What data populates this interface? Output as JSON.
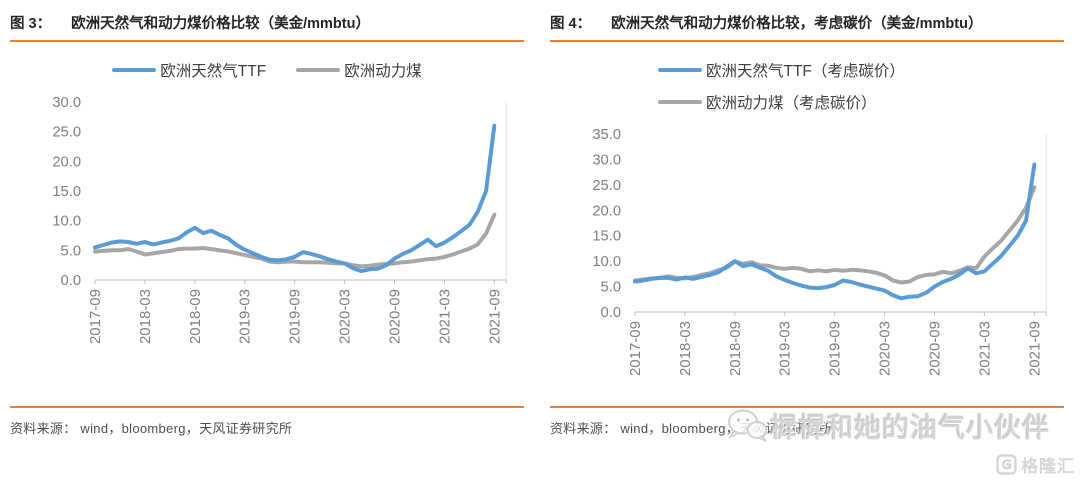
{
  "panels": [
    {
      "figure_label": "图 3：",
      "title": "欧洲天然气和动力煤价格比较（美金/mmbtu）",
      "source": "资料来源： wind，bloomberg，天风证券研究所"
    },
    {
      "figure_label": "图 4：",
      "title": "欧洲天然气和动力煤价格比较，考虑碳价（美金/mmbtu）",
      "source": "资料来源： wind，bloomberg，天风证券研究所"
    }
  ],
  "watermark": {
    "wechat_account": "樨樨和她的油气小伙伴",
    "brand": "格隆汇"
  },
  "colors": {
    "accent_orange": "#ED7D31",
    "gas_blue": "#5B9BD5",
    "coal_gray": "#A6A6A6",
    "axis_gray": "#7f7f7f"
  },
  "chart_data": [
    {
      "type": "line",
      "title": "欧洲天然气和动力煤价格比较（美金/mmbtu）",
      "x_tick_labels": [
        "2017-09",
        "2018-03",
        "2018-09",
        "2019-03",
        "2019-09",
        "2020-03",
        "2020-09",
        "2021-03",
        "2021-09"
      ],
      "points_per_tick": 6,
      "x_interval": "monthly",
      "ylim": [
        0,
        30
      ],
      "ytick_step": 5,
      "grid": false,
      "legend_position": "top",
      "series": [
        {
          "name": "欧洲天然气TTF",
          "color": "#5B9BD5",
          "values": [
            5.5,
            5.9,
            6.3,
            6.5,
            6.4,
            6.1,
            6.4,
            6.0,
            6.3,
            6.6,
            7.0,
            8.0,
            8.8,
            7.9,
            8.3,
            7.6,
            7.0,
            5.9,
            5.1,
            4.5,
            3.9,
            3.4,
            3.3,
            3.5,
            3.9,
            4.7,
            4.4,
            4.0,
            3.5,
            3.1,
            2.8,
            2.0,
            1.5,
            1.8,
            1.9,
            2.5,
            3.6,
            4.4,
            5.0,
            5.9,
            6.8,
            5.7,
            6.3,
            7.2,
            8.2,
            9.3,
            11.5,
            15.0,
            26.0
          ]
        },
        {
          "name": "欧洲动力煤",
          "color": "#A6A6A6",
          "values": [
            4.8,
            4.9,
            5.0,
            5.0,
            5.2,
            4.8,
            4.3,
            4.5,
            4.7,
            4.9,
            5.2,
            5.3,
            5.3,
            5.4,
            5.2,
            5.0,
            4.8,
            4.5,
            4.2,
            3.9,
            3.6,
            3.1,
            3.0,
            3.1,
            3.1,
            3.0,
            3.0,
            3.0,
            2.9,
            2.8,
            2.8,
            2.5,
            2.3,
            2.4,
            2.6,
            2.7,
            2.8,
            3.0,
            3.1,
            3.3,
            3.5,
            3.6,
            3.9,
            4.3,
            4.8,
            5.3,
            6.0,
            7.8,
            11.0
          ]
        }
      ]
    },
    {
      "type": "line",
      "title": "欧洲天然气和动力煤价格比较，考虑碳价（美金/mmbtu）",
      "x_tick_labels": [
        "2017-09",
        "2018-03",
        "2018-09",
        "2019-03",
        "2019-09",
        "2020-03",
        "2020-09",
        "2021-03",
        "2021-09"
      ],
      "points_per_tick": 6,
      "x_interval": "monthly",
      "ylim": [
        0,
        35
      ],
      "ytick_step": 5,
      "grid": false,
      "legend_position": "top",
      "series": [
        {
          "name": "欧洲天然气TTF（考虑碳价）",
          "color": "#5B9BD5",
          "values": [
            6.0,
            6.2,
            6.5,
            6.7,
            6.7,
            6.4,
            6.8,
            6.5,
            6.9,
            7.3,
            7.8,
            8.9,
            10.0,
            9.0,
            9.4,
            8.7,
            8.1,
            7.0,
            6.3,
            5.7,
            5.2,
            4.8,
            4.7,
            4.9,
            5.3,
            6.2,
            5.9,
            5.4,
            5.0,
            4.6,
            4.2,
            3.3,
            2.7,
            3.0,
            3.1,
            3.8,
            5.0,
            5.9,
            6.5,
            7.4,
            8.6,
            7.6,
            8.0,
            9.5,
            11.0,
            13.0,
            15.0,
            18.0,
            29.0
          ]
        },
        {
          "name": "欧洲动力煤（考虑碳价）",
          "color": "#A6A6A6",
          "values": [
            6.2,
            6.4,
            6.6,
            6.7,
            7.0,
            6.7,
            6.6,
            6.9,
            7.3,
            7.6,
            8.2,
            8.7,
            9.9,
            9.5,
            9.8,
            9.2,
            9.1,
            8.7,
            8.5,
            8.7,
            8.5,
            8.0,
            8.2,
            8.0,
            8.3,
            8.1,
            8.3,
            8.2,
            8.0,
            7.7,
            7.2,
            6.2,
            5.8,
            6.0,
            6.9,
            7.3,
            7.4,
            7.9,
            7.6,
            8.1,
            8.8,
            8.6,
            10.9,
            12.5,
            14.0,
            16.0,
            18.0,
            20.5,
            24.5
          ]
        }
      ]
    }
  ]
}
